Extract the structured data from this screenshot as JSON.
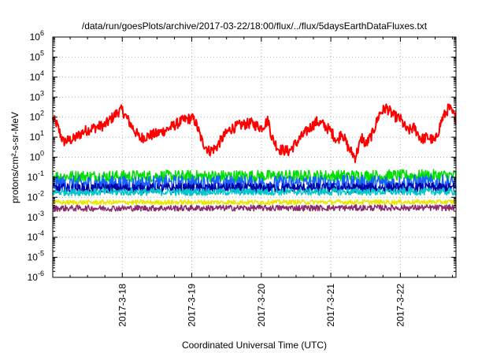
{
  "chart_data": {
    "type": "line",
    "title": "/data/run/goesPlots/archive/2017-03-22/18:00/flux/../flux/5daysEarthDataFluxes.txt",
    "xlabel": "Coordinated Universal Time (UTC)",
    "ylabel": "protons/cm²-s-sr-MeV",
    "yscale": "log",
    "ylim": [
      1e-06,
      1000000.0
    ],
    "xlim_days": [
      0,
      5.8
    ],
    "y_ticks": [
      {
        "exp": "-6",
        "value": 1e-06
      },
      {
        "exp": "-5",
        "value": 1e-05
      },
      {
        "exp": "-4",
        "value": 0.0001
      },
      {
        "exp": "-3",
        "value": 0.001
      },
      {
        "exp": "-2",
        "value": 0.01
      },
      {
        "exp": "-1",
        "value": 0.1
      },
      {
        "exp": "0",
        "value": 1
      },
      {
        "exp": "1",
        "value": 10
      },
      {
        "exp": "2",
        "value": 100
      },
      {
        "exp": "3",
        "value": 1000
      },
      {
        "exp": "4",
        "value": 10000
      },
      {
        "exp": "5",
        "value": 100000
      },
      {
        "exp": "6",
        "value": 1000000
      }
    ],
    "x_ticks": [
      {
        "label": "2017-3-18",
        "day": 1.0
      },
      {
        "label": "2017-3-19",
        "day": 2.0
      },
      {
        "label": "2017-3-20",
        "day": 3.0
      },
      {
        "label": "2017-3-21",
        "day": 4.0
      },
      {
        "label": "2017-3-22",
        "day": 5.0
      }
    ],
    "grid": true,
    "series": [
      {
        "color": "#ff0000",
        "noise": 0.09,
        "x": [
          0,
          0.05,
          0.15,
          0.3,
          0.45,
          0.6,
          0.75,
          0.85,
          0.95,
          1.0,
          1.05,
          1.15,
          1.25,
          1.35,
          1.5,
          1.65,
          1.8,
          1.9,
          2.0,
          2.05,
          2.15,
          2.25,
          2.35,
          2.45,
          2.55,
          2.7,
          2.85,
          3.0,
          3.1,
          3.15,
          3.25,
          3.4,
          3.55,
          3.7,
          3.8,
          3.9,
          4.0,
          4.1,
          4.15,
          4.25,
          4.35,
          4.45,
          4.5,
          4.6,
          4.7,
          4.8,
          4.9,
          5.0,
          5.1,
          5.2,
          5.3,
          5.4,
          5.5,
          5.6,
          5.7,
          5.8
        ],
        "y": [
          80,
          50,
          6,
          8,
          20,
          30,
          40,
          90,
          200,
          220,
          110,
          30,
          9,
          11,
          15,
          25,
          50,
          75,
          90,
          60,
          6,
          2,
          3,
          10,
          25,
          40,
          50,
          30,
          70,
          10,
          2.5,
          2,
          8,
          30,
          60,
          40,
          20,
          6,
          20,
          3,
          1,
          10,
          4,
          15,
          150,
          300,
          120,
          80,
          20,
          30,
          8,
          10,
          6,
          80,
          300,
          80
        ]
      },
      {
        "color": "#00e000",
        "noise": 0.1,
        "x": [
          0,
          5.8
        ],
        "y": [
          0.11,
          0.12
        ]
      },
      {
        "color": "#1860ff",
        "noise": 0.14,
        "x": [
          0,
          5.8
        ],
        "y": [
          0.045,
          0.05
        ]
      },
      {
        "color": "#0000a0",
        "noise": 0.08,
        "x": [
          0,
          5.8
        ],
        "y": [
          0.028,
          0.03
        ]
      },
      {
        "color": "#00c8c8",
        "noise": 0.06,
        "x": [
          0,
          5.8
        ],
        "y": [
          0.018,
          0.019
        ]
      },
      {
        "color": "#e8e800",
        "noise": 0.04,
        "x": [
          0,
          5.8
        ],
        "y": [
          0.0055,
          0.0058
        ]
      },
      {
        "color": "#8b2a6e",
        "noise": 0.05,
        "x": [
          0,
          5.8
        ],
        "y": [
          0.0028,
          0.003
        ]
      }
    ]
  }
}
